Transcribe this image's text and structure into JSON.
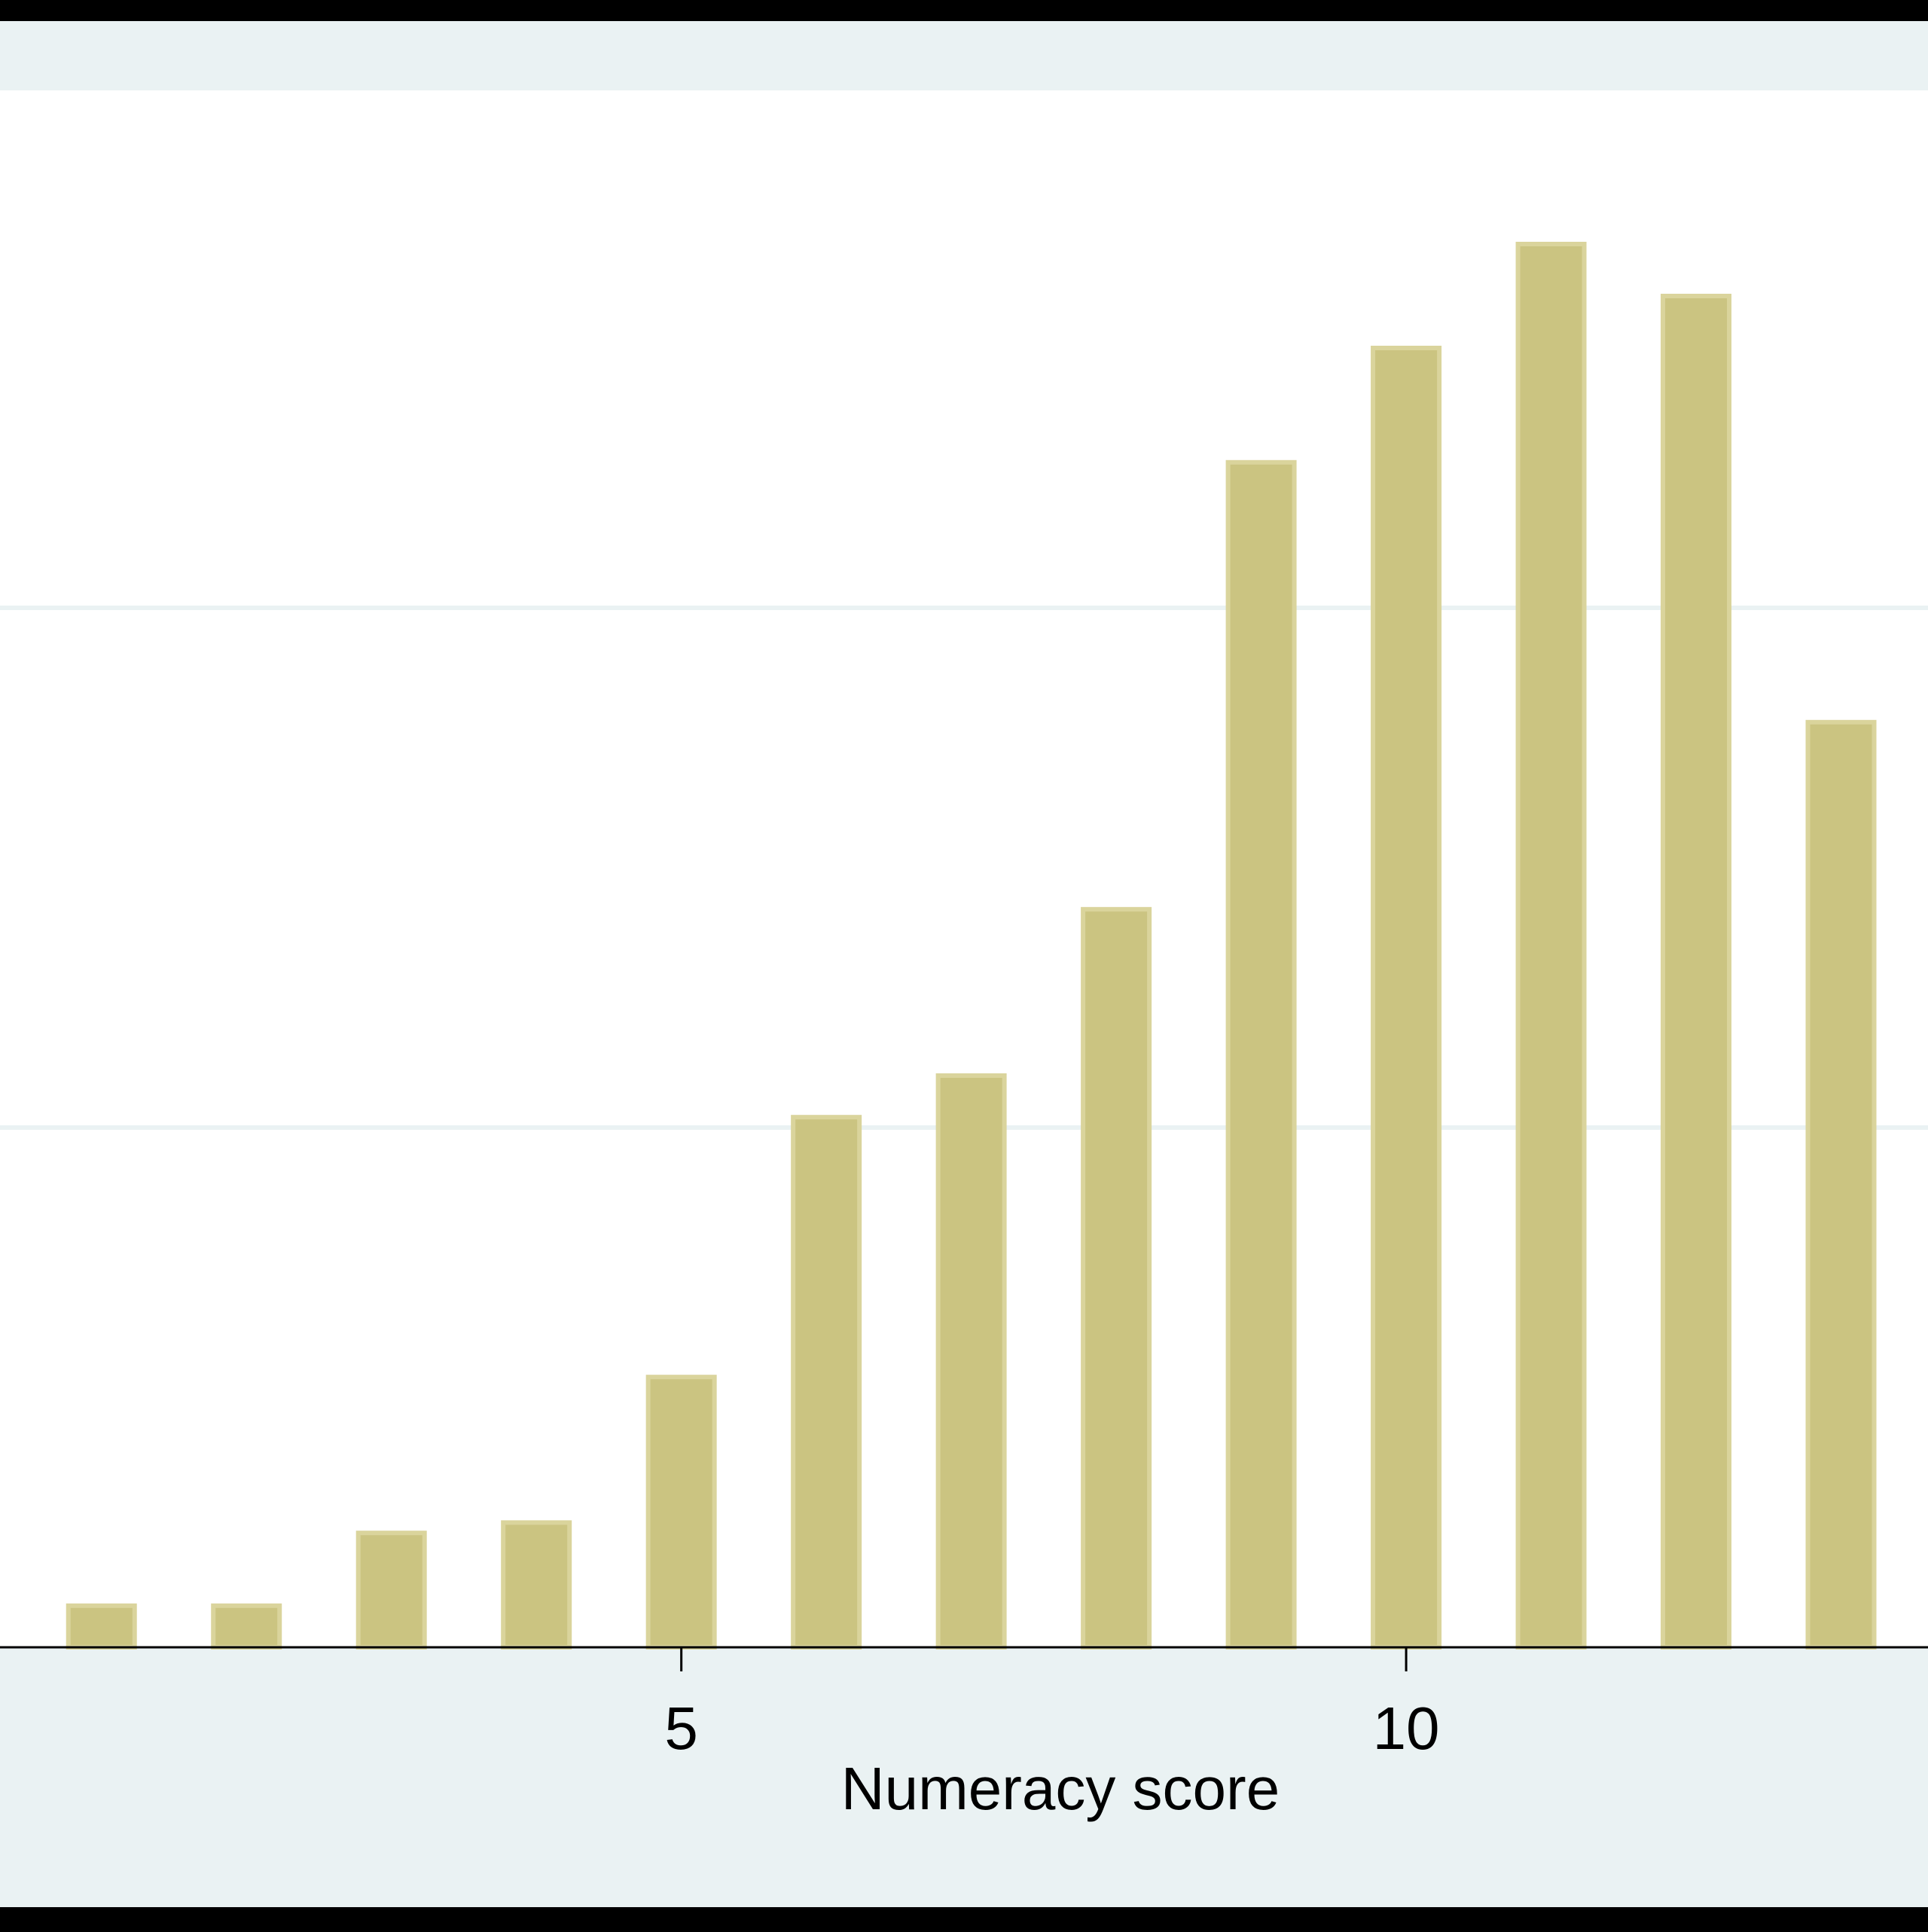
{
  "chart_data": {
    "type": "bar",
    "title": "",
    "xlabel": "Numeracy score",
    "ylabel": "",
    "x": [
      1,
      2,
      3,
      4,
      5,
      6,
      7,
      8,
      9,
      10,
      11,
      12,
      13
    ],
    "values": [
      0.8,
      0.8,
      2.2,
      2.4,
      5.2,
      10.2,
      11.0,
      14.2,
      22.8,
      25.0,
      27.0,
      26.0,
      17.8
    ],
    "xlim": [
      0.3,
      13.6
    ],
    "ylim": [
      0,
      30
    ],
    "xticks": [
      5,
      10
    ],
    "xtick_labels": [
      "5",
      "10"
    ],
    "ygrid": [
      10,
      20,
      30
    ],
    "grid": true,
    "colors": {
      "bar_fill": "#CBC481",
      "bar_edge": "#DAD49C",
      "plot_background": "#FFFFFF",
      "outer_background": "#EAF2F3",
      "gridline": "#EAF2F3",
      "frame": "#000000",
      "text": "#000000"
    }
  }
}
